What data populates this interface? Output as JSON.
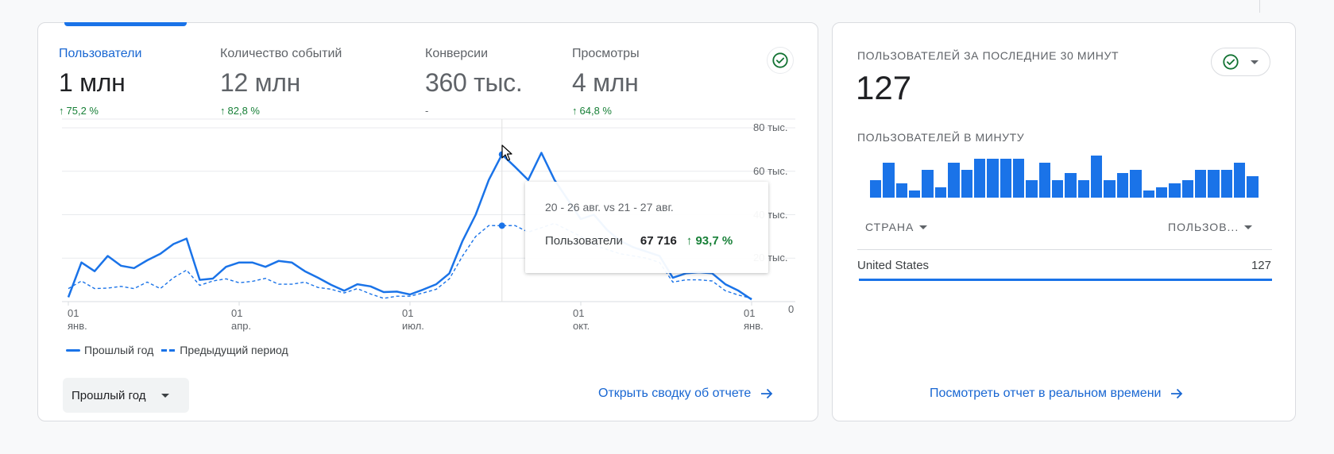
{
  "overview_card": {
    "metrics": [
      {
        "label": "Пользователи",
        "value": "1 млн",
        "delta": "75,2 %",
        "trend": "up",
        "active": true
      },
      {
        "label": "Количество событий",
        "value": "12 млн",
        "delta": "82,8 %",
        "trend": "up",
        "active": false
      },
      {
        "label": "Конверсии",
        "value": "360 тыс.",
        "delta": "-",
        "trend": "none",
        "active": false
      },
      {
        "label": "Просмотры",
        "value": "4 млн",
        "delta": "64,8 %",
        "trend": "up",
        "active": false
      }
    ],
    "status_icon": "check-circle-icon",
    "legend": {
      "solid": "Прошлый год",
      "dashed": "Предыдущий период"
    },
    "period_dropdown": {
      "selected": "Прошлый год"
    },
    "report_link": "Открыть сводку об отчете",
    "tooltip": {
      "date_range": "20 - 26 авг. vs 21 - 27 авг.",
      "metric": "Пользователи",
      "value": "67 716",
      "delta": "93,7 %",
      "arrow": "↑"
    }
  },
  "chart_data": {
    "type": "line",
    "title": "",
    "xlabel": "",
    "ylabel": "Пользователи",
    "ylim": [
      0,
      80000
    ],
    "grid": true,
    "legend_position": "bottom-left",
    "y_ticks": [
      "80 тыс.",
      "60 тыс.",
      "40 тыс.",
      "20 тыс.",
      "0"
    ],
    "x_ticks": [
      {
        "day": "01",
        "month": "янв.",
        "index": 0
      },
      {
        "day": "01",
        "month": "апр.",
        "index": 13
      },
      {
        "day": "01",
        "month": "июл.",
        "index": 26
      },
      {
        "day": "01",
        "month": "окт.",
        "index": 39
      },
      {
        "day": "01",
        "month": "янв.",
        "index": 52
      }
    ],
    "hover_index": 33,
    "series": [
      {
        "name": "Прошлый год",
        "style": "solid",
        "color": "#1a73e8",
        "values": [
          2000,
          18000,
          14000,
          21000,
          16500,
          15400,
          19000,
          22000,
          26500,
          29000,
          10000,
          10600,
          16000,
          18000,
          18000,
          16000,
          18700,
          18000,
          14000,
          11000,
          7700,
          5000,
          8000,
          7000,
          4400,
          4600,
          3300,
          5500,
          8000,
          13000,
          28000,
          40000,
          56000,
          67716,
          62000,
          56000,
          68500,
          56000,
          47000,
          38000,
          40000,
          33000,
          28000,
          25000,
          23000,
          21000,
          11000,
          13000,
          13500,
          13000,
          8000,
          5000,
          1000
        ]
      },
      {
        "name": "Предыдущий период",
        "style": "dashed",
        "color": "#1a73e8",
        "values": [
          6000,
          9500,
          6000,
          6200,
          7000,
          6000,
          9000,
          6000,
          11000,
          14500,
          7500,
          9500,
          10500,
          8700,
          9300,
          10700,
          8000,
          8000,
          9000,
          6500,
          5700,
          4000,
          6000,
          3500,
          1500,
          2500,
          2500,
          4000,
          5700,
          10500,
          21000,
          30000,
          35000,
          34950,
          35000,
          32000,
          34000,
          36000,
          33000,
          30000,
          26000,
          24000,
          22000,
          21000,
          20000,
          18000,
          9000,
          10000,
          10000,
          9500,
          5000,
          3000,
          1500
        ]
      }
    ]
  },
  "realtime_card": {
    "title": "ПОЛЬЗОВАТЕЛЕЙ ЗА ПОСЛЕДНИЕ 30 МИНУТ",
    "value": "127",
    "per_minute_label": "ПОЛЬЗОВАТЕЛЕЙ В МИНУТУ",
    "per_minute_bars": [
      5,
      10,
      4,
      2,
      8,
      3,
      10,
      8,
      11,
      11,
      11,
      11,
      5,
      10,
      5,
      7,
      5,
      12,
      5,
      7,
      8,
      2,
      3,
      4,
      5,
      8,
      8,
      8,
      10,
      6
    ],
    "table": {
      "columns": [
        "СТРАНА",
        "ПОЛЬЗОВ..."
      ],
      "rows": [
        {
          "country": "United States",
          "users": "127"
        }
      ]
    },
    "report_link": "Посмотреть отчет в реальном времени"
  },
  "colors": {
    "accent": "#1a73e8",
    "link": "#1967d2",
    "positive": "#188038",
    "muted": "#5f6368"
  }
}
